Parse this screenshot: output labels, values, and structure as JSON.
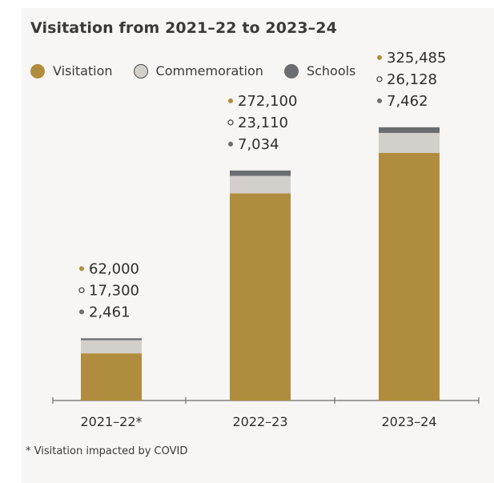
{
  "chart_data": {
    "type": "bar",
    "stacked": true,
    "title": "Visitation from 2021–22 to 2023–24",
    "categories": [
      "2021–22*",
      "2022–23",
      "2023–24"
    ],
    "series": [
      {
        "name": "Visitation",
        "color": "#b08d3e",
        "values": [
          62000,
          272100,
          325485
        ],
        "labels": [
          "62,000",
          "272,100",
          "325,485"
        ]
      },
      {
        "name": "Commemoration",
        "color": "#d3cfca",
        "values": [
          17300,
          23110,
          26128
        ],
        "labels": [
          "17,300",
          "23,110",
          "26,128"
        ]
      },
      {
        "name": "Schools",
        "color": "#6c6d70",
        "values": [
          2461,
          7034,
          7462
        ],
        "labels": [
          "2,461",
          "7,034",
          "7,462"
        ]
      }
    ],
    "legend_position": "top-left",
    "grid": false,
    "footnote": "* Visitation impacted by COVID"
  }
}
